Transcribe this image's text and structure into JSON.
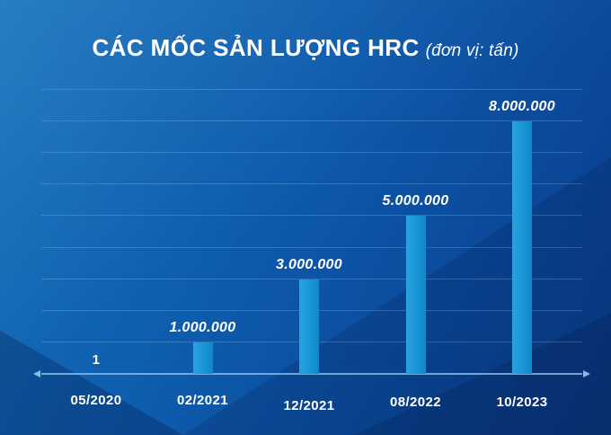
{
  "header": {
    "title": "CÁC MỐC SẢN LƯỢNG HRC",
    "unit": "(đơn vị: tấn)"
  },
  "chart_data": {
    "type": "bar",
    "title": "CÁC MỐC SẢN LƯỢNG HRC",
    "subtitle": "(đơn vị: tấn)",
    "categories": [
      "05/2020",
      "02/2021",
      "12/2021",
      "08/2022",
      "10/2023"
    ],
    "values": [
      1,
      1000000,
      3000000,
      5000000,
      8000000
    ],
    "value_labels": [
      "1",
      "1.000.000",
      "3.000.000",
      "5.000.000",
      "8.000.000"
    ],
    "xlabel": "",
    "ylabel": "",
    "ylim": [
      0,
      9000000
    ],
    "grid_step": 1000000,
    "grid": "horizontal-only",
    "legend_position": "none",
    "colors": {
      "bar": "#1795D8",
      "background_top_left": "#1874BD",
      "background_bottom_right": "#093C88",
      "grid_line": "rgba(160,205,240,0.26)",
      "axis_line": "#8CC3EE",
      "text": "#FFFFFF"
    }
  }
}
